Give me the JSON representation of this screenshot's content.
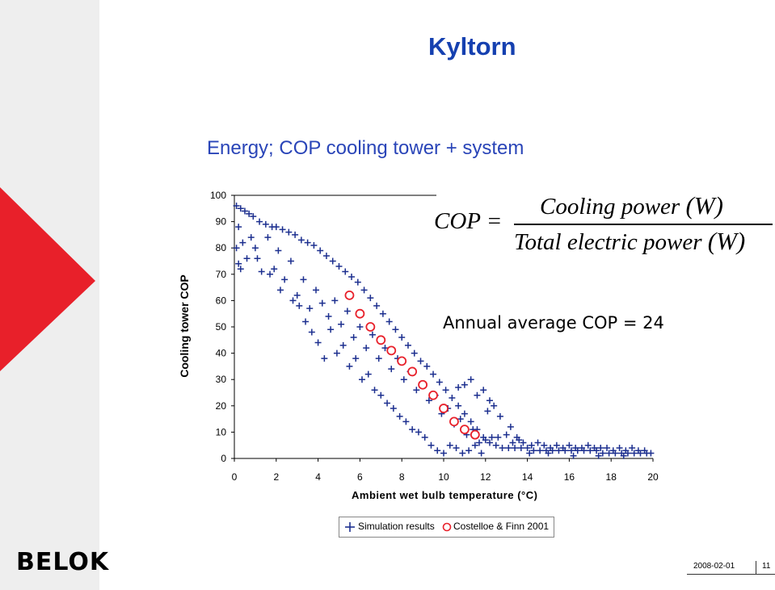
{
  "slide": {
    "title": "Kyltorn",
    "subtitle": "Energy; COP cooling tower + system",
    "logo_text": "BELOK",
    "date": "2008-02-01",
    "page_number": "11",
    "accent_color": "#1540b0",
    "red_color": "#e8202a"
  },
  "formula": {
    "lhs": "COP =",
    "numerator": "Cooling power",
    "numerator_unit": "(W)",
    "denominator": "Total electric power",
    "denominator_unit": "(W)"
  },
  "annotation": "Annual average COP = 24",
  "chart_data": {
    "type": "scatter",
    "title": "",
    "xlabel": "Ambient wet bulb temperature (°C)",
    "ylabel": "Cooling tower COP",
    "xlim": [
      0,
      20
    ],
    "ylim": [
      0,
      100
    ],
    "xticks": [
      "0",
      "2",
      "4",
      "6",
      "8",
      "10",
      "12",
      "14",
      "16",
      "18",
      "20"
    ],
    "yticks": [
      "0",
      "10",
      "20",
      "30",
      "40",
      "50",
      "60",
      "70",
      "80",
      "90",
      "100"
    ],
    "grid": false,
    "legend_position": "bottom",
    "series": [
      {
        "name": "Simulation results",
        "marker": "plus",
        "color": "#1c2f8f",
        "points": [
          [
            0.1,
            96
          ],
          [
            0.3,
            95
          ],
          [
            0.5,
            94
          ],
          [
            0.7,
            93
          ],
          [
            0.9,
            92
          ],
          [
            1.2,
            90
          ],
          [
            1.5,
            89
          ],
          [
            1.8,
            88
          ],
          [
            2.0,
            88
          ],
          [
            2.3,
            87
          ],
          [
            2.6,
            86
          ],
          [
            2.9,
            85
          ],
          [
            3.2,
            83
          ],
          [
            3.5,
            82
          ],
          [
            3.8,
            81
          ],
          [
            4.1,
            79
          ],
          [
            4.4,
            77
          ],
          [
            4.7,
            75
          ],
          [
            5.0,
            73
          ],
          [
            5.3,
            71
          ],
          [
            5.6,
            69
          ],
          [
            5.9,
            67
          ],
          [
            6.2,
            64
          ],
          [
            6.5,
            61
          ],
          [
            6.8,
            58
          ],
          [
            7.1,
            55
          ],
          [
            7.4,
            52
          ],
          [
            7.7,
            49
          ],
          [
            8.0,
            46
          ],
          [
            8.3,
            43
          ],
          [
            8.6,
            40
          ],
          [
            8.9,
            37
          ],
          [
            9.2,
            35
          ],
          [
            9.5,
            32
          ],
          [
            9.8,
            29
          ],
          [
            10.1,
            26
          ],
          [
            10.4,
            23
          ],
          [
            10.7,
            20
          ],
          [
            11.0,
            17
          ],
          [
            11.3,
            14
          ],
          [
            11.6,
            11
          ],
          [
            11.9,
            8
          ],
          [
            12.2,
            6
          ],
          [
            12.5,
            5
          ],
          [
            12.8,
            4
          ],
          [
            13.1,
            4
          ],
          [
            13.4,
            4
          ],
          [
            13.7,
            4
          ],
          [
            14.0,
            4
          ],
          [
            14.3,
            3
          ],
          [
            14.6,
            3
          ],
          [
            14.9,
            3
          ],
          [
            15.2,
            3
          ],
          [
            15.5,
            3
          ],
          [
            15.8,
            3
          ],
          [
            16.1,
            3
          ],
          [
            16.4,
            3
          ],
          [
            16.7,
            3
          ],
          [
            17.0,
            3
          ],
          [
            17.3,
            3
          ],
          [
            17.6,
            2
          ],
          [
            17.9,
            2
          ],
          [
            18.2,
            2
          ],
          [
            18.5,
            2
          ],
          [
            18.8,
            2
          ],
          [
            19.1,
            2
          ],
          [
            19.4,
            2
          ],
          [
            19.7,
            2
          ],
          [
            19.9,
            2
          ],
          [
            0.2,
            88
          ],
          [
            0.4,
            82
          ],
          [
            0.6,
            76
          ],
          [
            0.2,
            74
          ],
          [
            0.8,
            84
          ],
          [
            1.0,
            80
          ],
          [
            1.3,
            71
          ],
          [
            1.6,
            84
          ],
          [
            1.9,
            72
          ],
          [
            2.1,
            79
          ],
          [
            2.4,
            68
          ],
          [
            2.7,
            75
          ],
          [
            3.0,
            62
          ],
          [
            3.3,
            68
          ],
          [
            3.6,
            57
          ],
          [
            3.9,
            64
          ],
          [
            4.2,
            59
          ],
          [
            4.5,
            54
          ],
          [
            4.8,
            60
          ],
          [
            5.1,
            51
          ],
          [
            5.4,
            56
          ],
          [
            5.7,
            46
          ],
          [
            6.0,
            50
          ],
          [
            6.3,
            42
          ],
          [
            6.6,
            47
          ],
          [
            6.9,
            38
          ],
          [
            7.2,
            42
          ],
          [
            7.5,
            34
          ],
          [
            7.8,
            38
          ],
          [
            8.1,
            30
          ],
          [
            8.4,
            33
          ],
          [
            8.7,
            26
          ],
          [
            9.0,
            28
          ],
          [
            9.3,
            22
          ],
          [
            9.6,
            24
          ],
          [
            9.9,
            17
          ],
          [
            10.2,
            19
          ],
          [
            10.5,
            13
          ],
          [
            10.8,
            15
          ],
          [
            11.1,
            9
          ],
          [
            11.4,
            11
          ],
          [
            11.7,
            6
          ],
          [
            12.0,
            7
          ],
          [
            12.3,
            8
          ],
          [
            12.6,
            8
          ],
          [
            13.0,
            9
          ],
          [
            13.3,
            6
          ],
          [
            13.6,
            7
          ],
          [
            4.9,
            40
          ],
          [
            5.2,
            43
          ],
          [
            5.5,
            35
          ],
          [
            5.8,
            38
          ],
          [
            6.1,
            30
          ],
          [
            6.4,
            32
          ],
          [
            6.7,
            26
          ],
          [
            7.0,
            24
          ],
          [
            7.3,
            21
          ],
          [
            7.6,
            19
          ],
          [
            7.9,
            16
          ],
          [
            8.2,
            14
          ],
          [
            8.5,
            11
          ],
          [
            8.8,
            10
          ],
          [
            9.1,
            8
          ],
          [
            9.4,
            5
          ],
          [
            9.7,
            3
          ],
          [
            10.0,
            2
          ],
          [
            10.3,
            5
          ],
          [
            10.6,
            4
          ],
          [
            10.9,
            2
          ],
          [
            11.2,
            3
          ],
          [
            11.5,
            5
          ],
          [
            11.8,
            2
          ],
          [
            3.1,
            58
          ],
          [
            3.4,
            52
          ],
          [
            2.8,
            60
          ],
          [
            2.2,
            64
          ],
          [
            1.7,
            70
          ],
          [
            1.1,
            76
          ],
          [
            3.7,
            48
          ],
          [
            4.0,
            44
          ],
          [
            4.3,
            38
          ],
          [
            4.6,
            49
          ],
          [
            12.1,
            18
          ],
          [
            12.4,
            20
          ],
          [
            12.7,
            16
          ],
          [
            13.2,
            12
          ],
          [
            13.5,
            8
          ],
          [
            13.8,
            6
          ],
          [
            14.2,
            5
          ],
          [
            14.5,
            6
          ],
          [
            14.8,
            5
          ],
          [
            15.1,
            4
          ],
          [
            15.4,
            5
          ],
          [
            15.7,
            4
          ],
          [
            16.0,
            5
          ],
          [
            16.3,
            4
          ],
          [
            16.6,
            4
          ],
          [
            16.9,
            5
          ],
          [
            17.2,
            4
          ],
          [
            17.5,
            4
          ],
          [
            17.8,
            4
          ],
          [
            18.1,
            3
          ],
          [
            18.4,
            4
          ],
          [
            18.7,
            3
          ],
          [
            19.0,
            4
          ],
          [
            19.3,
            3
          ],
          [
            19.6,
            3
          ],
          [
            14.1,
            2
          ],
          [
            15.0,
            2
          ],
          [
            16.2,
            1
          ],
          [
            17.4,
            1
          ],
          [
            18.6,
            1
          ],
          [
            11.0,
            28
          ],
          [
            11.3,
            30
          ],
          [
            11.6,
            24
          ],
          [
            11.9,
            26
          ],
          [
            12.2,
            22
          ],
          [
            10.7,
            27
          ],
          [
            0.1,
            80
          ],
          [
            0.3,
            72
          ]
        ]
      },
      {
        "name": "Costelloe & Finn 2001",
        "marker": "circle",
        "color": "#e8202a",
        "points": [
          [
            5.5,
            62
          ],
          [
            6.0,
            55
          ],
          [
            6.5,
            50
          ],
          [
            7.0,
            45
          ],
          [
            7.5,
            41
          ],
          [
            8.0,
            37
          ],
          [
            8.5,
            33
          ],
          [
            9.0,
            28
          ],
          [
            9.5,
            24
          ],
          [
            10.0,
            19
          ],
          [
            10.5,
            14
          ],
          [
            11.0,
            11
          ],
          [
            11.5,
            9
          ]
        ]
      }
    ]
  }
}
